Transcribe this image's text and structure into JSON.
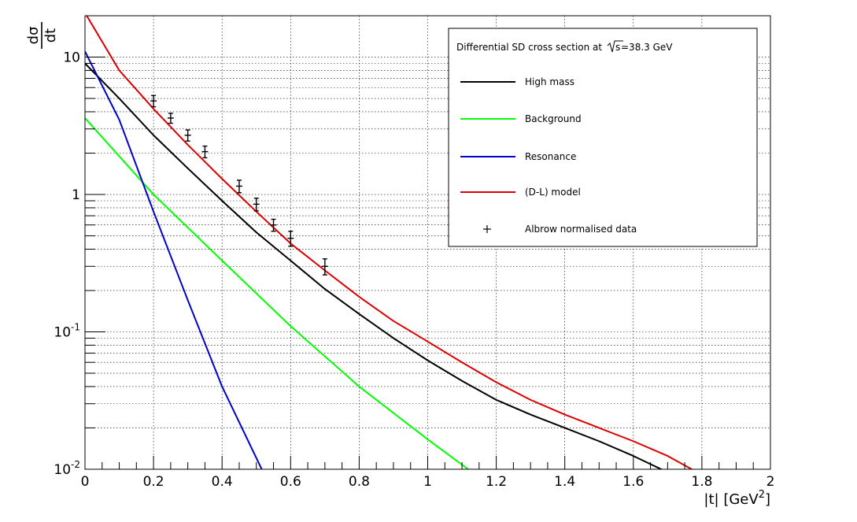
{
  "chart_data": {
    "type": "line",
    "yscale": "log",
    "xlim": [
      0,
      2
    ],
    "ylim": [
      0.01,
      20
    ],
    "grid": true,
    "xlabel": "|t| [GeV",
    "xlabel_sup": "2",
    "xlabel_end": "]",
    "ylabel_num": "dσ",
    "ylabel_den": "dt",
    "x_ticks": [
      {
        "value": 0,
        "label": "0"
      },
      {
        "value": 0.2,
        "label": "0.2"
      },
      {
        "value": 0.4,
        "label": "0.4"
      },
      {
        "value": 0.6,
        "label": "0.6"
      },
      {
        "value": 0.8,
        "label": "0.8"
      },
      {
        "value": 1,
        "label": "1"
      },
      {
        "value": 1.2,
        "label": "1.2"
      },
      {
        "value": 1.4,
        "label": "1.4"
      },
      {
        "value": 1.6,
        "label": "1.6"
      },
      {
        "value": 1.8,
        "label": "1.8"
      },
      {
        "value": 2,
        "label": "2"
      }
    ],
    "y_ticks": [
      {
        "value": 0.01,
        "base": "10",
        "exp": "-2"
      },
      {
        "value": 0.1,
        "base": "10",
        "exp": "-1"
      },
      {
        "value": 1,
        "base": "1",
        "exp": ""
      },
      {
        "value": 10,
        "base": "10",
        "exp": ""
      }
    ],
    "legend": {
      "position": "top-right",
      "header": "Differential SD cross section at",
      "header_sqrt_arg": "s",
      "header_value": "=38.3 GeV"
    },
    "series": [
      {
        "name": "High mass",
        "color": "#000000",
        "x": [
          0,
          0.1,
          0.2,
          0.3,
          0.4,
          0.5,
          0.6,
          0.7,
          0.8,
          0.9,
          1.0,
          1.1,
          1.2,
          1.3,
          1.4,
          1.5,
          1.6,
          1.7
        ],
        "y": [
          9.0,
          5.0,
          2.7,
          1.55,
          0.9,
          0.53,
          0.33,
          0.205,
          0.135,
          0.09,
          0.062,
          0.044,
          0.032,
          0.025,
          0.02,
          0.016,
          0.0125,
          0.0095
        ]
      },
      {
        "name": "Background",
        "color": "#00ff00",
        "x": [
          0,
          0.2,
          0.4,
          0.6,
          0.8,
          1.0,
          1.13
        ],
        "y": [
          3.6,
          1.0,
          0.33,
          0.11,
          0.04,
          0.0165,
          0.0095
        ]
      },
      {
        "name": "Resonance",
        "color": "#0000cc",
        "x": [
          0,
          0.1,
          0.2,
          0.3,
          0.4,
          0.52
        ],
        "y": [
          11,
          3.5,
          0.75,
          0.17,
          0.04,
          0.0095
        ]
      },
      {
        "name": "(D-L) model",
        "color": "#dd0000",
        "x": [
          0,
          0.1,
          0.2,
          0.3,
          0.4,
          0.5,
          0.6,
          0.7,
          0.8,
          0.9,
          1.0,
          1.1,
          1.2,
          1.3,
          1.4,
          1.5,
          1.6,
          1.7,
          1.78
        ],
        "y": [
          21,
          8.0,
          4.2,
          2.3,
          1.3,
          0.75,
          0.44,
          0.28,
          0.18,
          0.12,
          0.085,
          0.06,
          0.043,
          0.032,
          0.025,
          0.02,
          0.016,
          0.0125,
          0.0097
        ]
      },
      {
        "name": "Albrow normalised data",
        "color": "#000000",
        "marker": "cross",
        "x": [
          0.2,
          0.25,
          0.3,
          0.35,
          0.45,
          0.5,
          0.55,
          0.6,
          0.7
        ],
        "y": [
          4.8,
          3.6,
          2.7,
          2.05,
          1.15,
          0.85,
          0.6,
          0.48,
          0.3
        ],
        "yerr": [
          0.45,
          0.3,
          0.25,
          0.2,
          0.12,
          0.09,
          0.06,
          0.06,
          0.04
        ]
      }
    ]
  }
}
